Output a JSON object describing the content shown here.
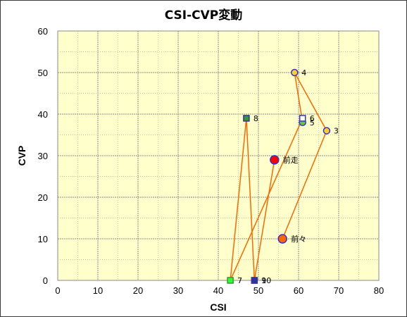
{
  "chart_data": {
    "type": "scatter",
    "title": "CSI-CVP変動",
    "xlabel": "CSI",
    "ylabel": "CVP",
    "xlim": [
      0,
      80
    ],
    "ylim": [
      0,
      60
    ],
    "xticks": [
      0,
      10,
      20,
      30,
      40,
      50,
      60,
      70,
      80
    ],
    "yticks": [
      0,
      10,
      20,
      30,
      40,
      50,
      60
    ],
    "grid": true,
    "plot_background": "#ffffcc",
    "line_color": "#ff6600",
    "points": [
      {
        "label": "前々",
        "x": 56,
        "y": 10,
        "marker": "circle",
        "size": "large",
        "fill": "#ff6600",
        "stroke": "#3333cc"
      },
      {
        "label": "3",
        "x": 67,
        "y": 36,
        "marker": "circle",
        "size": "small",
        "fill": "#ffcc33",
        "stroke": "#3333cc"
      },
      {
        "label": "4",
        "x": 59,
        "y": 50,
        "marker": "circle",
        "size": "small",
        "fill": "#ffcc33",
        "stroke": "#3333cc"
      },
      {
        "label": "5",
        "x": 61,
        "y": 38,
        "marker": "circle",
        "size": "small",
        "fill": "#66cc33",
        "stroke": "#3333cc"
      },
      {
        "label": "6",
        "x": 61,
        "y": 39,
        "marker": "square",
        "size": "small",
        "fill": "#ffffff",
        "stroke": "#3333cc"
      },
      {
        "label": "7",
        "x": 43,
        "y": 0,
        "marker": "square",
        "size": "small",
        "fill": "#33ff33",
        "stroke": "#339933"
      },
      {
        "label": "8",
        "x": 47,
        "y": 39,
        "marker": "square",
        "size": "small",
        "fill": "#339933",
        "stroke": "#333399"
      },
      {
        "label": "9",
        "x": 49,
        "y": 0,
        "marker": "square",
        "size": "small",
        "fill": "#3333cc",
        "stroke": "#333399"
      },
      {
        "label": "10",
        "x": 49,
        "y": 0,
        "marker": "square",
        "size": "small",
        "fill": "#333399",
        "stroke": "#333399"
      },
      {
        "label": "前走",
        "x": 54,
        "y": 29,
        "marker": "circle",
        "size": "large",
        "fill": "#ff0000",
        "stroke": "#3333cc"
      }
    ]
  }
}
